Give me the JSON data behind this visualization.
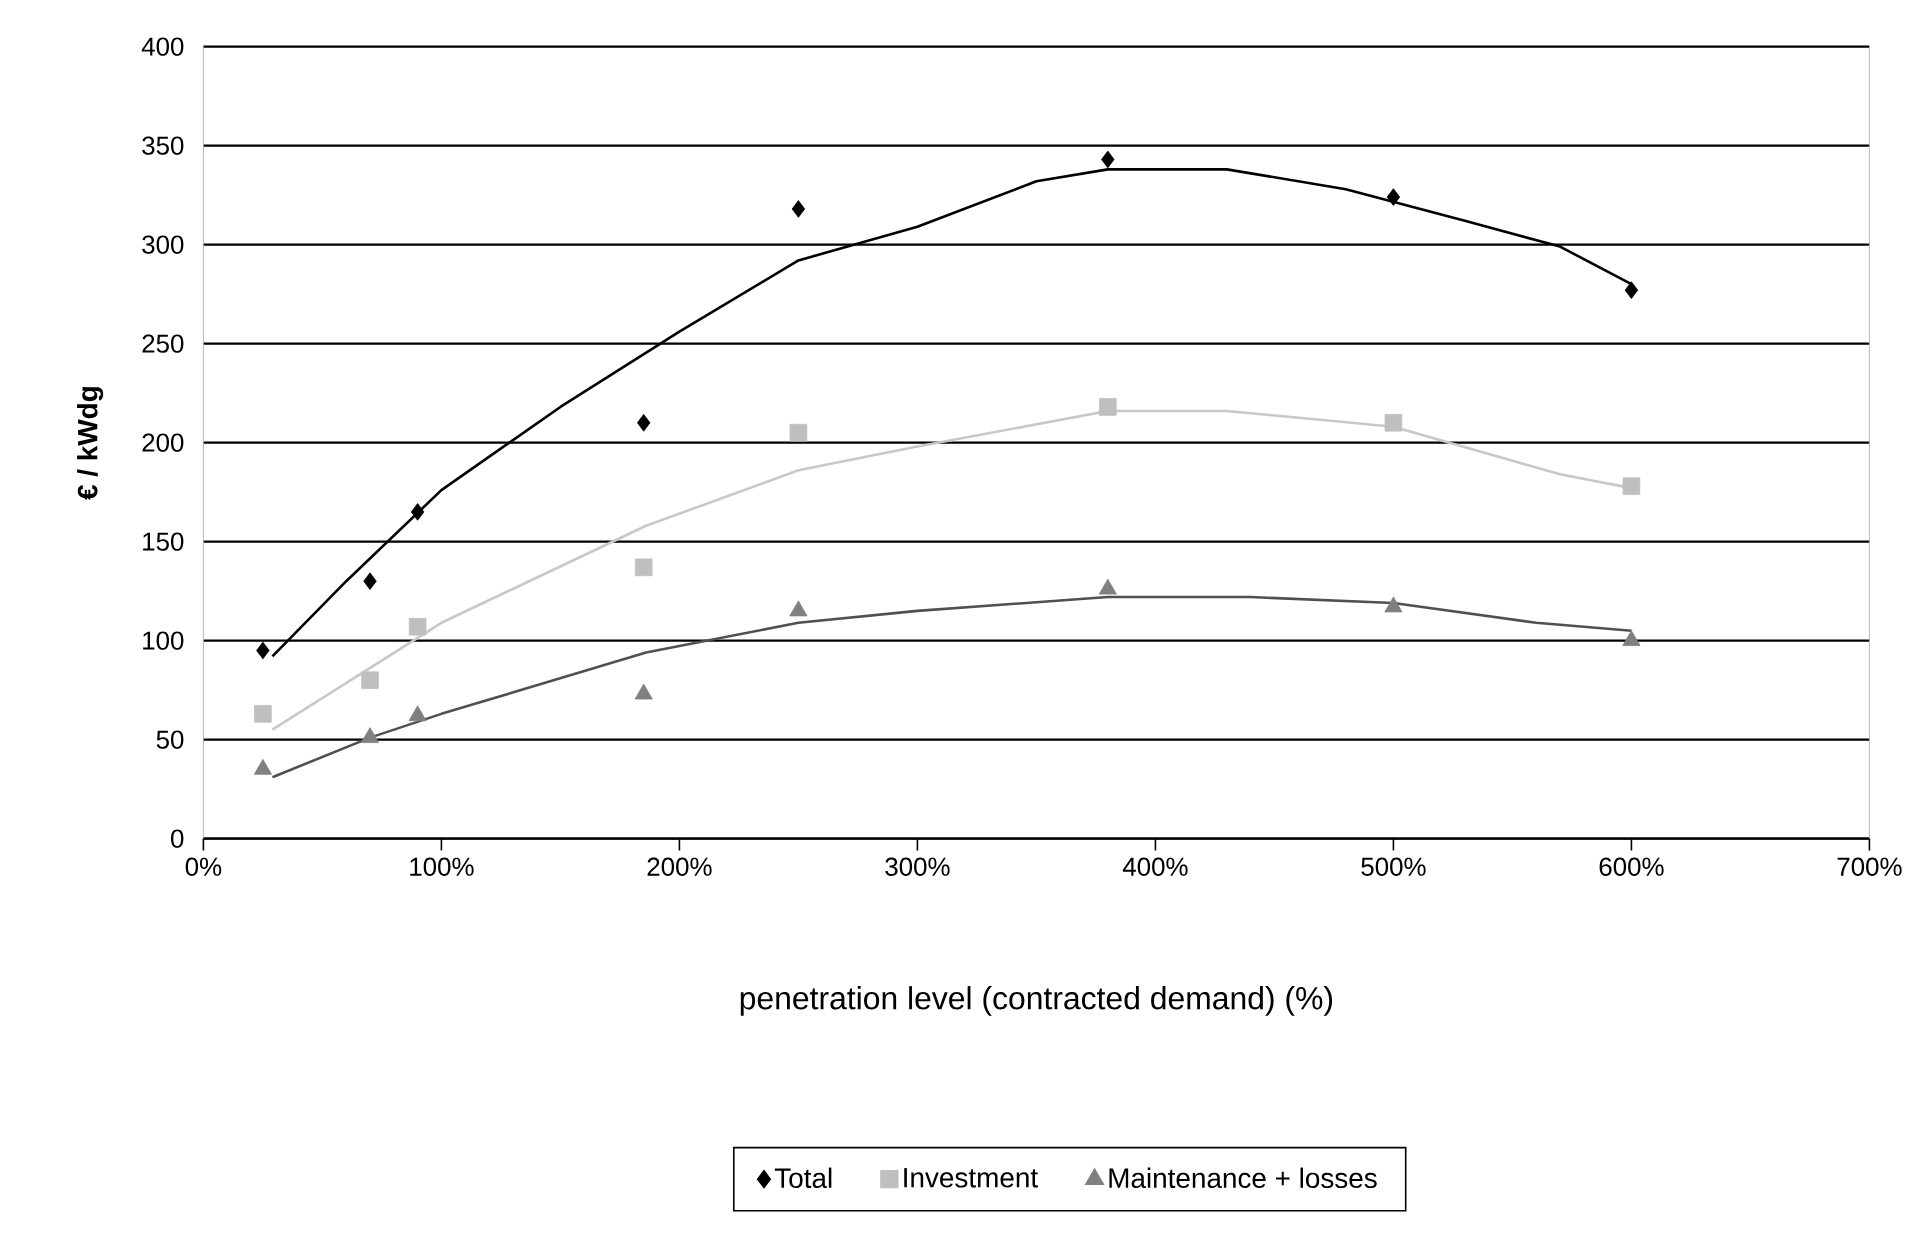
{
  "chart_data": {
    "type": "scatter",
    "xlabel": "penetration level (contracted demand) (%)",
    "ylabel": "€ / kWdg",
    "x": [
      25,
      70,
      90,
      185,
      250,
      380,
      500,
      600
    ],
    "series": [
      {
        "name": "Total",
        "color": "#000000",
        "marker": "diamond",
        "values": [
          95,
          130,
          165,
          210,
          318,
          343,
          324,
          277
        ]
      },
      {
        "name": "Investment",
        "color": "#bfbfbf",
        "marker": "square",
        "values": [
          63,
          80,
          107,
          137,
          205,
          218,
          210,
          178
        ]
      },
      {
        "name": "Maintenance + losses",
        "color": "#808080",
        "marker": "triangle",
        "values": [
          35,
          51,
          62,
          73,
          115,
          126,
          117,
          100
        ]
      },
      {
        "type": "line",
        "color": "#000000",
        "line_style": "solid",
        "marker": "none",
        "x": [
          29,
          60,
          100,
          150,
          200,
          250,
          300,
          350,
          380,
          430,
          480,
          530,
          570,
          600
        ],
        "values": [
          92,
          130,
          176,
          218,
          256,
          292,
          309,
          332,
          338,
          338,
          328,
          312,
          299,
          280
        ]
      },
      {
        "type": "line",
        "color": "#c8c8c8",
        "line_style": "solid",
        "marker": "none",
        "x": [
          29,
          100,
          186,
          250,
          300,
          380,
          430,
          500,
          570,
          600
        ],
        "values": [
          55,
          109,
          158,
          186,
          198,
          216,
          216,
          208,
          184,
          177
        ]
      },
      {
        "type": "line",
        "color": "#505050",
        "line_style": "solid",
        "marker": "none",
        "x": [
          29,
          70,
          100,
          186,
          250,
          300,
          380,
          440,
          500,
          560,
          600
        ],
        "values": [
          31,
          51,
          63,
          94,
          109,
          115,
          122,
          122,
          119,
          109,
          105
        ]
      }
    ],
    "xlim": [
      0,
      700
    ],
    "ylim": [
      0,
      400
    ],
    "xticks": [
      {
        "value": 0,
        "label": "0%"
      },
      {
        "value": 100,
        "label": "100%"
      },
      {
        "value": 200,
        "label": "200%"
      },
      {
        "value": 300,
        "label": "300%"
      },
      {
        "value": 400,
        "label": "400%"
      },
      {
        "value": 500,
        "label": "500%"
      },
      {
        "value": 600,
        "label": "600%"
      },
      {
        "value": 700,
        "label": "700%"
      }
    ],
    "yticks": [
      0,
      50,
      100,
      150,
      200,
      250,
      300,
      350,
      400
    ],
    "grid": "y",
    "legend": "bottom"
  }
}
